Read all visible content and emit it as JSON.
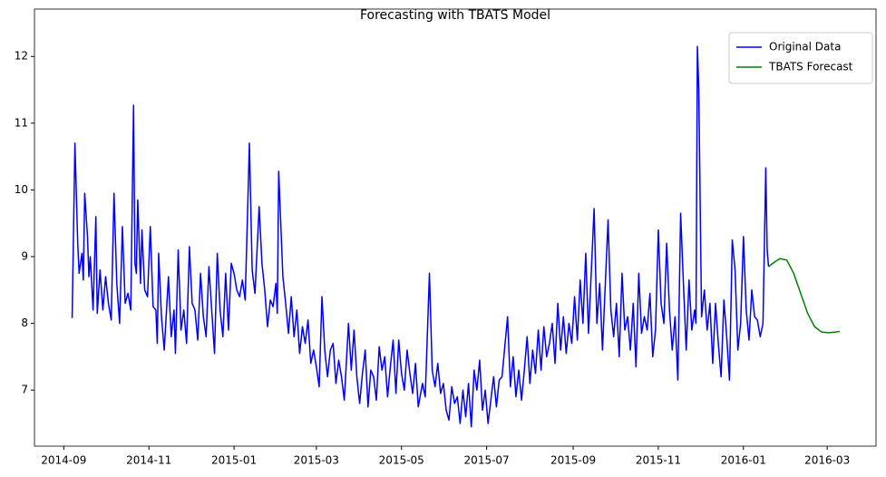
{
  "chart_data": {
    "type": "line",
    "title": "Forecasting with TBATS Model",
    "xlim": [
      "2014-08-11",
      "2016-04-05"
    ],
    "xticks": [
      {
        "value": "2014-09-01",
        "label": "2014-09"
      },
      {
        "value": "2014-11-01",
        "label": "2014-11"
      },
      {
        "value": "2015-01-01",
        "label": "2015-01"
      },
      {
        "value": "2015-03-01",
        "label": "2015-03"
      },
      {
        "value": "2015-05-01",
        "label": "2015-05"
      },
      {
        "value": "2015-07-01",
        "label": "2015-07"
      },
      {
        "value": "2015-09-01",
        "label": "2015-09"
      },
      {
        "value": "2015-11-01",
        "label": "2015-11"
      },
      {
        "value": "2016-01-01",
        "label": "2016-01"
      },
      {
        "value": "2016-03-01",
        "label": "2016-03"
      }
    ],
    "ylim": [
      6.16,
      12.71
    ],
    "yticks": [
      7,
      8,
      9,
      10,
      11,
      12
    ],
    "grid": false,
    "legend": "upper right",
    "series": [
      {
        "name": "Original Data",
        "color": "#0000ff",
        "x": [
          "2014-09-07",
          "2014-09-09",
          "2014-09-11",
          "2014-09-12",
          "2014-09-14",
          "2014-09-15",
          "2014-09-16",
          "2014-09-18",
          "2014-09-19",
          "2014-09-20",
          "2014-09-22",
          "2014-09-24",
          "2014-09-25",
          "2014-09-27",
          "2014-09-29",
          "2014-10-01",
          "2014-10-03",
          "2014-10-05",
          "2014-10-07",
          "2014-10-09",
          "2014-10-11",
          "2014-10-13",
          "2014-10-15",
          "2014-10-17",
          "2014-10-19",
          "2014-10-21",
          "2014-10-22",
          "2014-10-23",
          "2014-10-24",
          "2014-10-26",
          "2014-10-27",
          "2014-10-29",
          "2014-10-31",
          "2014-11-02",
          "2014-11-04",
          "2014-11-06",
          "2014-11-07",
          "2014-11-08",
          "2014-11-10",
          "2014-11-12",
          "2014-11-15",
          "2014-11-17",
          "2014-11-19",
          "2014-11-20",
          "2014-11-22",
          "2014-11-24",
          "2014-11-26",
          "2014-11-28",
          "2014-11-30",
          "2014-12-02",
          "2014-12-04",
          "2014-12-06",
          "2014-12-08",
          "2014-12-10",
          "2014-12-12",
          "2014-12-14",
          "2014-12-16",
          "2014-12-18",
          "2014-12-20",
          "2014-12-22",
          "2014-12-24",
          "2014-12-26",
          "2014-12-28",
          "2014-12-30",
          "2015-01-01",
          "2015-01-03",
          "2015-01-05",
          "2015-01-07",
          "2015-01-09",
          "2015-01-11",
          "2015-01-12",
          "2015-01-14",
          "2015-01-16",
          "2015-01-19",
          "2015-01-21",
          "2015-01-23",
          "2015-01-25",
          "2015-01-27",
          "2015-01-29",
          "2015-01-31",
          "2015-02-01",
          "2015-02-02",
          "2015-02-05",
          "2015-02-07",
          "2015-02-09",
          "2015-02-11",
          "2015-02-13",
          "2015-02-15",
          "2015-02-17",
          "2015-02-19",
          "2015-02-21",
          "2015-02-23",
          "2015-02-25",
          "2015-02-27",
          "2015-03-01",
          "2015-03-03",
          "2015-03-05",
          "2015-03-07",
          "2015-03-09",
          "2015-03-11",
          "2015-03-13",
          "2015-03-15",
          "2015-03-17",
          "2015-03-19",
          "2015-03-21",
          "2015-03-24",
          "2015-03-26",
          "2015-03-28",
          "2015-03-30",
          "2015-04-01",
          "2015-04-03",
          "2015-04-05",
          "2015-04-07",
          "2015-04-09",
          "2015-04-11",
          "2015-04-13",
          "2015-04-15",
          "2015-04-17",
          "2015-04-19",
          "2015-04-21",
          "2015-04-23",
          "2015-04-25",
          "2015-04-27",
          "2015-04-29",
          "2015-05-01",
          "2015-05-03",
          "2015-05-05",
          "2015-05-07",
          "2015-05-09",
          "2015-05-11",
          "2015-05-13",
          "2015-05-16",
          "2015-05-18",
          "2015-05-21",
          "2015-05-23",
          "2015-05-25",
          "2015-05-27",
          "2015-05-29",
          "2015-05-31",
          "2015-06-02",
          "2015-06-04",
          "2015-06-06",
          "2015-06-08",
          "2015-06-10",
          "2015-06-12",
          "2015-06-14",
          "2015-06-16",
          "2015-06-18",
          "2015-06-20",
          "2015-06-22",
          "2015-06-24",
          "2015-06-26",
          "2015-06-28",
          "2015-06-30",
          "2015-07-02",
          "2015-07-04",
          "2015-07-06",
          "2015-07-08",
          "2015-07-10",
          "2015-07-12",
          "2015-07-16",
          "2015-07-18",
          "2015-07-20",
          "2015-07-22",
          "2015-07-24",
          "2015-07-26",
          "2015-07-28",
          "2015-07-30",
          "2015-08-01",
          "2015-08-03",
          "2015-08-05",
          "2015-08-07",
          "2015-08-09",
          "2015-08-11",
          "2015-08-13",
          "2015-08-15",
          "2015-08-17",
          "2015-08-19",
          "2015-08-21",
          "2015-08-23",
          "2015-08-25",
          "2015-08-27",
          "2015-08-29",
          "2015-08-31",
          "2015-09-02",
          "2015-09-04",
          "2015-09-06",
          "2015-09-08",
          "2015-09-10",
          "2015-09-12",
          "2015-09-16",
          "2015-09-18",
          "2015-09-20",
          "2015-09-22",
          "2015-09-26",
          "2015-09-28",
          "2015-09-30",
          "2015-10-02",
          "2015-10-04",
          "2015-10-06",
          "2015-10-08",
          "2015-10-10",
          "2015-10-12",
          "2015-10-14",
          "2015-10-16",
          "2015-10-18",
          "2015-10-20",
          "2015-10-22",
          "2015-10-24",
          "2015-10-26",
          "2015-10-28",
          "2015-10-30",
          "2015-11-01",
          "2015-11-03",
          "2015-11-05",
          "2015-11-07",
          "2015-11-09",
          "2015-11-11",
          "2015-11-13",
          "2015-11-15",
          "2015-11-17",
          "2015-11-19",
          "2015-11-21",
          "2015-11-23",
          "2015-11-25",
          "2015-11-27",
          "2015-11-28",
          "2015-11-29",
          "2015-11-30",
          "2015-12-02",
          "2015-12-04",
          "2015-12-06",
          "2015-12-08",
          "2015-12-10",
          "2015-12-12",
          "2015-12-14",
          "2015-12-16",
          "2015-12-18",
          "2015-12-20",
          "2015-12-22",
          "2015-12-24",
          "2015-12-26",
          "2015-12-28",
          "2015-12-30",
          "2016-01-01",
          "2016-01-03",
          "2016-01-05",
          "2016-01-07",
          "2016-01-09",
          "2016-01-11",
          "2016-01-13",
          "2016-01-15",
          "2016-01-17",
          "2016-01-18",
          "2016-01-19"
        ],
        "values": [
          8.08,
          10.7,
          9.2,
          8.75,
          9.05,
          8.65,
          9.95,
          9.3,
          8.7,
          9.0,
          8.2,
          9.6,
          8.15,
          8.8,
          8.2,
          8.7,
          8.3,
          8.05,
          9.95,
          8.6,
          8.0,
          9.45,
          8.3,
          8.45,
          8.2,
          11.27,
          8.9,
          8.75,
          9.85,
          8.6,
          9.4,
          8.5,
          8.4,
          9.45,
          8.25,
          8.2,
          7.7,
          9.05,
          8.1,
          7.6,
          8.7,
          7.8,
          8.2,
          7.55,
          9.1,
          7.9,
          8.2,
          7.7,
          9.15,
          8.3,
          8.2,
          7.75,
          8.75,
          8.1,
          7.8,
          8.85,
          8.2,
          7.55,
          9.05,
          8.2,
          7.8,
          8.75,
          7.9,
          8.9,
          8.75,
          8.5,
          8.4,
          8.65,
          8.35,
          9.9,
          10.7,
          8.8,
          8.45,
          9.75,
          8.9,
          8.5,
          7.95,
          8.35,
          8.25,
          8.6,
          8.15,
          10.28,
          8.7,
          8.3,
          7.85,
          8.4,
          7.8,
          8.2,
          7.55,
          7.95,
          7.7,
          8.05,
          7.4,
          7.6,
          7.35,
          7.05,
          8.4,
          7.6,
          7.2,
          7.6,
          7.7,
          7.1,
          7.45,
          7.2,
          6.85,
          8.0,
          7.3,
          7.9,
          7.2,
          6.8,
          7.25,
          7.6,
          6.75,
          7.3,
          7.2,
          6.85,
          7.65,
          7.3,
          7.5,
          6.9,
          7.35,
          7.75,
          6.95,
          7.75,
          7.25,
          7.0,
          7.6,
          7.25,
          6.95,
          7.4,
          6.75,
          7.1,
          6.9,
          8.75,
          7.3,
          7.05,
          7.4,
          6.95,
          7.1,
          6.7,
          6.55,
          7.05,
          6.8,
          6.9,
          6.5,
          7.0,
          6.6,
          7.1,
          6.45,
          7.3,
          7.0,
          7.45,
          6.7,
          7.0,
          6.5,
          6.85,
          7.2,
          6.75,
          7.15,
          7.2,
          8.1,
          7.05,
          7.5,
          6.9,
          7.3,
          6.85,
          7.3,
          7.8,
          7.1,
          7.6,
          7.25,
          7.9,
          7.3,
          7.95,
          7.5,
          7.7,
          8.0,
          7.4,
          8.3,
          7.6,
          8.1,
          7.55,
          8.0,
          7.7,
          8.4,
          7.75,
          8.65,
          8.0,
          9.05,
          7.85,
          9.72,
          8.0,
          8.6,
          7.6,
          9.55,
          8.2,
          7.8,
          8.3,
          7.5,
          8.75,
          7.9,
          8.1,
          7.6,
          8.3,
          7.35,
          8.75,
          7.85,
          8.1,
          7.9,
          8.45,
          7.5,
          7.9,
          9.4,
          8.3,
          8.0,
          9.2,
          8.2,
          7.6,
          8.1,
          7.15,
          9.65,
          8.6,
          7.6,
          8.65,
          7.9,
          8.2,
          8.0,
          12.15,
          11.5,
          8.1,
          8.5,
          7.9,
          8.3,
          7.4,
          8.3,
          7.7,
          7.2,
          8.35,
          7.8,
          7.15,
          9.25,
          8.8,
          7.6,
          8.0,
          9.3,
          8.2,
          7.75,
          8.5,
          8.1,
          8.05,
          7.8,
          8.0,
          10.33,
          9.1,
          8.85
        ]
      },
      {
        "name": "TBATS Forecast",
        "color": "#008000",
        "x": [
          "2016-01-19",
          "2016-01-22",
          "2016-01-27",
          "2016-02-01",
          "2016-02-06",
          "2016-02-11",
          "2016-02-16",
          "2016-02-21",
          "2016-02-26",
          "2016-03-02",
          "2016-03-07",
          "2016-03-10"
        ],
        "values": [
          8.85,
          8.9,
          8.97,
          8.95,
          8.75,
          8.45,
          8.15,
          7.95,
          7.87,
          7.86,
          7.87,
          7.88
        ]
      }
    ]
  }
}
